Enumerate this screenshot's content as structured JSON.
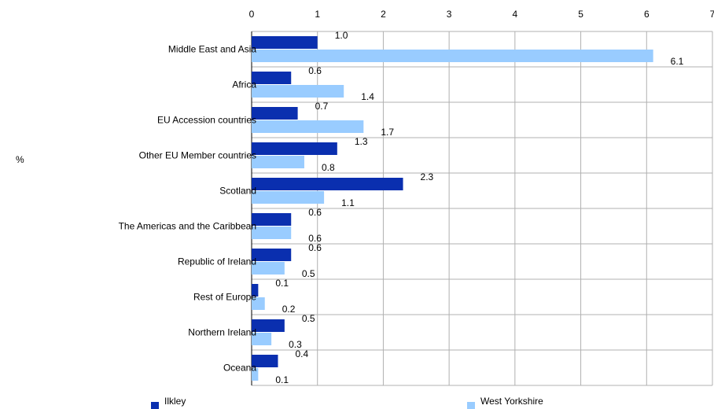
{
  "chart_data": {
    "type": "bar",
    "orientation": "horizontal",
    "ylabel": "%",
    "xlim": [
      0,
      7
    ],
    "xticks": [
      0,
      1,
      2,
      3,
      4,
      5,
      6,
      7
    ],
    "grid": true,
    "legend_position": "bottom",
    "categories": [
      "Middle East and Asia",
      "Africa",
      "EU Accession countries",
      "Other EU Member countries",
      "Scotland",
      "The Americas and the Caribbean",
      "Republic of Ireland",
      "Rest of Europe",
      "Northern Ireland",
      "Oceana"
    ],
    "series": [
      {
        "name": "Ilkley",
        "color": "#0a2faf",
        "values": [
          1.0,
          0.6,
          0.7,
          1.3,
          2.3,
          0.6,
          0.6,
          0.1,
          0.5,
          0.4
        ],
        "labels": [
          "1.0",
          "0.6",
          "0.7",
          "1.3",
          "2.3",
          "0.6",
          "0.6",
          "0.1",
          "0.5",
          "0.4"
        ]
      },
      {
        "name": "West Yorkshire",
        "color": "#99ccff",
        "values": [
          6.1,
          1.4,
          1.7,
          0.8,
          1.1,
          0.6,
          0.5,
          0.2,
          0.3,
          0.1
        ],
        "labels": [
          "6.1",
          "1.4",
          "1.7",
          "0.8",
          "1.1",
          "0.6",
          "0.5",
          "0.2",
          "0.3",
          "0.1"
        ]
      }
    ]
  }
}
